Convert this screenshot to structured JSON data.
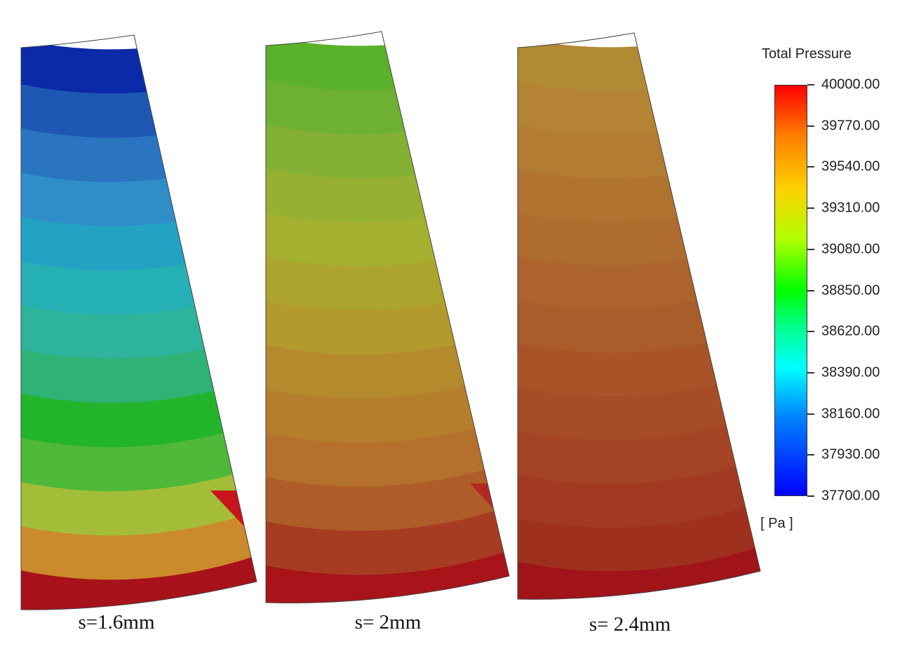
{
  "legend": {
    "title": "Total Pressure",
    "unit": "[ Pa ]",
    "ticks": [
      "40000.00",
      "39770.00",
      "39540.00",
      "39310.00",
      "39080.00",
      "38850.00",
      "38620.00",
      "38390.00",
      "38160.00",
      "37930.00",
      "37700.00"
    ],
    "min": 37700,
    "max": 40000,
    "colormap": [
      "#0000ff",
      "#0080ff",
      "#00ffff",
      "#00ff80",
      "#00ff00",
      "#b0ff00",
      "#ffd000",
      "#ff8000",
      "#ff0000"
    ]
  },
  "panels": [
    {
      "label": "s=1.6mm",
      "band_colors": [
        "#0a2aa8",
        "#1e58b4",
        "#2a74c0",
        "#2f8ec8",
        "#23a2c4",
        "#25b0b6",
        "#2eb49c",
        "#2fb276",
        "#22b42a",
        "#4eb838",
        "#a4bd38",
        "#cb8a2c",
        "#a8121a"
      ]
    },
    {
      "label": "s= 2mm",
      "band_colors": [
        "#5ab22a",
        "#6eb032",
        "#84b034",
        "#96b032",
        "#a4b030",
        "#aca42c",
        "#b49a2c",
        "#b48a2c",
        "#b47e2c",
        "#b4702c",
        "#ae5c28",
        "#a83c22",
        "#a8141a"
      ]
    },
    {
      "label": "s= 2.4mm",
      "band_colors": [
        "#b28a34",
        "#b48434",
        "#b27c32",
        "#b07430",
        "#ae6c2e",
        "#ac642c",
        "#aa5c2a",
        "#a85428",
        "#a64c26",
        "#a44424",
        "#a23a22",
        "#a0301e",
        "#a0141a"
      ]
    }
  ]
}
